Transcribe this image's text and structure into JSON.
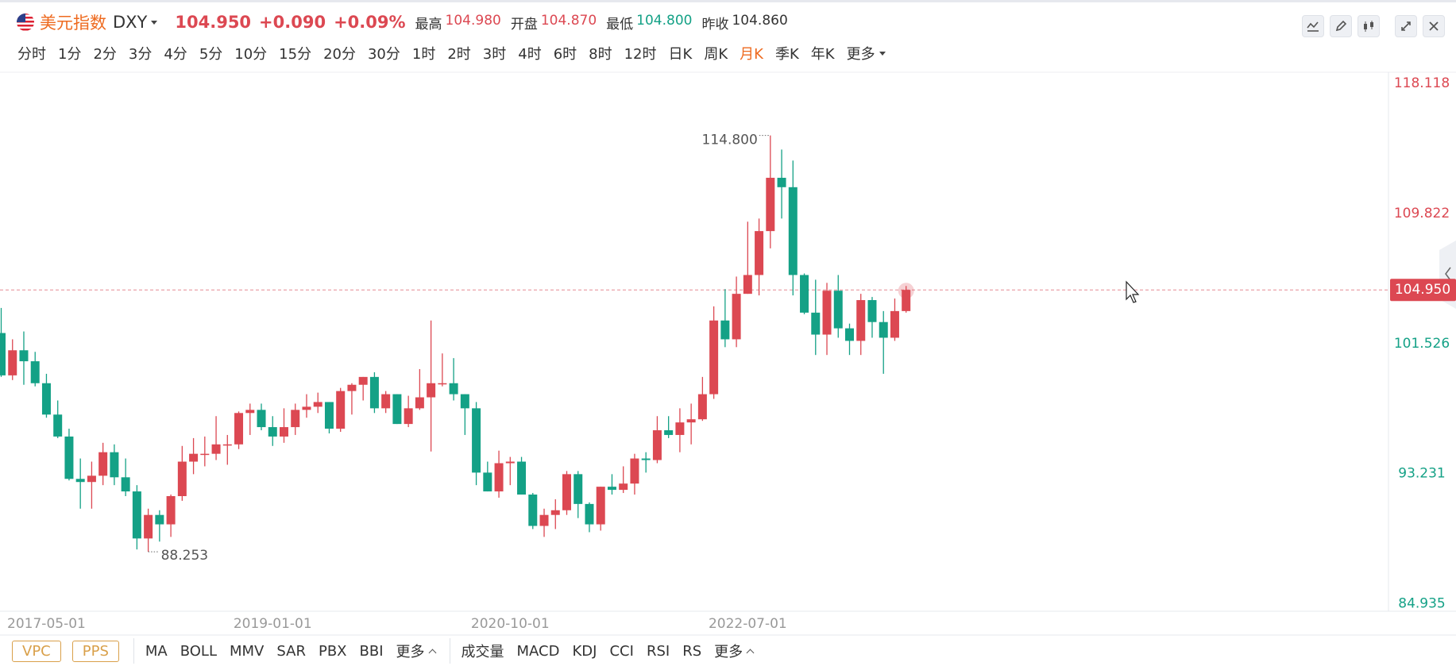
{
  "header": {
    "name": "美元指数",
    "symbol": "DXY",
    "price": "104.950",
    "change": "+0.090",
    "change_pct": "+0.09%",
    "stats": [
      {
        "label": "最高",
        "value": "104.980",
        "tone": "up"
      },
      {
        "label": "开盘",
        "value": "104.870",
        "tone": "up"
      },
      {
        "label": "最低",
        "value": "104.800",
        "tone": "down"
      },
      {
        "label": "昨收",
        "value": "104.860",
        "tone": "flat"
      }
    ]
  },
  "periods": [
    {
      "label": "分时",
      "active": false
    },
    {
      "label": "1分",
      "active": false
    },
    {
      "label": "2分",
      "active": false
    },
    {
      "label": "3分",
      "active": false
    },
    {
      "label": "4分",
      "active": false
    },
    {
      "label": "5分",
      "active": false
    },
    {
      "label": "10分",
      "active": false
    },
    {
      "label": "15分",
      "active": false
    },
    {
      "label": "20分",
      "active": false
    },
    {
      "label": "30分",
      "active": false
    },
    {
      "label": "1时",
      "active": false
    },
    {
      "label": "2时",
      "active": false
    },
    {
      "label": "3时",
      "active": false
    },
    {
      "label": "4时",
      "active": false
    },
    {
      "label": "6时",
      "active": false
    },
    {
      "label": "8时",
      "active": false
    },
    {
      "label": "12时",
      "active": false
    },
    {
      "label": "日K",
      "active": false
    },
    {
      "label": "周K",
      "active": false
    },
    {
      "label": "月K",
      "active": true
    },
    {
      "label": "季K",
      "active": false
    },
    {
      "label": "年K",
      "active": false
    }
  ],
  "periods_more": "更多",
  "indicators": {
    "boxed": [
      "VPC",
      "PPS"
    ],
    "main": [
      "MA",
      "BOLL",
      "MMV",
      "SAR",
      "PBX",
      "BBI"
    ],
    "main_more": "更多",
    "sub": [
      "成交量",
      "MACD",
      "KDJ",
      "CCI",
      "RSI",
      "RS"
    ],
    "sub_more": "更多"
  },
  "chart_data": {
    "type": "candlestick",
    "categories": [
      null,
      null,
      null,
      null,
      "2017-05-01",
      null,
      null,
      null,
      null,
      null,
      null,
      null,
      null,
      null,
      null,
      null,
      null,
      null,
      null,
      null,
      null,
      null,
      null,
      null,
      "2019-01-01",
      null,
      null,
      null,
      null,
      null,
      null,
      null,
      null,
      null,
      null,
      null,
      null,
      null,
      null,
      null,
      null,
      null,
      null,
      null,
      null,
      "2020-10-01",
      null,
      null,
      null,
      null,
      null,
      null,
      null,
      null,
      null,
      null,
      null,
      null,
      null,
      null,
      null,
      null,
      null,
      null,
      null,
      null,
      "2022-07-01",
      null,
      null,
      null,
      null,
      null,
      null,
      null,
      null,
      null,
      null,
      null,
      null,
      null,
      null
    ],
    "open": [
      102.2,
      99.5,
      101.1,
      100.4,
      99.0,
      97.0,
      95.6,
      92.9,
      92.7,
      93.1,
      94.6,
      93.0,
      92.1,
      89.1,
      90.6,
      90.0,
      91.8,
      94.0,
      94.5,
      94.5,
      95.1,
      95.1,
      97.1,
      97.3,
      96.2,
      95.6,
      96.2,
      97.3,
      97.5,
      97.8,
      96.1,
      98.5,
      98.9,
      99.4,
      97.4,
      98.3,
      96.4,
      97.4,
      98.1,
      99.0,
      99.0,
      98.3,
      97.4,
      93.3,
      92.1,
      93.9,
      94.0,
      91.9,
      89.9,
      90.6,
      90.9,
      93.2,
      91.3,
      90.0,
      92.4,
      92.2,
      92.6,
      94.2,
      94.1,
      96.0,
      95.7,
      96.5,
      96.7,
      98.3,
      103.0,
      101.8,
      104.7,
      105.9,
      108.7,
      112.1,
      111.5,
      105.9,
      103.5,
      102.1,
      104.9,
      102.5,
      101.7,
      104.3,
      102.9,
      101.9,
      103.6
    ],
    "high": [
      103.8,
      101.8,
      102.3,
      101.0,
      99.6,
      97.9,
      96.1,
      94.2,
      94.0,
      95.2,
      95.1,
      94.2,
      92.5,
      91.0,
      90.9,
      91.9,
      95.0,
      95.5,
      95.6,
      96.9,
      95.7,
      97.2,
      97.7,
      97.7,
      96.9,
      97.4,
      97.7,
      98.3,
      98.4,
      97.8,
      98.7,
      99.0,
      99.4,
      99.7,
      98.5,
      98.3,
      98.2,
      99.9,
      103.0,
      100.9,
      100.6,
      98.3,
      97.8,
      94.0,
      94.7,
      94.3,
      94.3,
      92.0,
      91.0,
      91.6,
      93.4,
      93.4,
      91.4,
      92.4,
      93.2,
      93.7,
      94.5,
      94.6,
      96.9,
      96.9,
      97.4,
      97.7,
      99.4,
      103.9,
      105.0,
      105.8,
      109.3,
      109.5,
      114.8,
      113.9,
      113.2,
      106.0,
      105.6,
      105.4,
      105.9,
      102.8,
      104.7,
      104.5,
      103.6,
      104.4,
      105.2
    ],
    "low": [
      99.4,
      99.2,
      98.9,
      98.8,
      96.8,
      95.5,
      92.8,
      91.0,
      91.0,
      92.5,
      92.5,
      91.8,
      88.4,
      88.253,
      88.9,
      89.2,
      91.5,
      93.2,
      93.7,
      94.1,
      93.8,
      94.8,
      95.7,
      96.0,
      95.0,
      95.2,
      95.7,
      96.8,
      97.1,
      95.8,
      95.9,
      97.0,
      97.9,
      97.1,
      97.1,
      96.4,
      96.2,
      97.3,
      94.65,
      98.8,
      97.9,
      95.7,
      92.5,
      92.1,
      91.7,
      92.5,
      91.9,
      89.7,
      89.2,
      89.7,
      90.6,
      90.4,
      89.5,
      89.6,
      91.9,
      92.0,
      91.9,
      93.3,
      93.9,
      95.5,
      94.6,
      95.1,
      96.6,
      98.0,
      101.3,
      101.3,
      104.7,
      104.6,
      107.6,
      109.5,
      104.6,
      103.4,
      100.8,
      100.8,
      101.9,
      100.8,
      100.8,
      101.9,
      99.6,
      101.7,
      103.5
    ],
    "close": [
      99.5,
      101.1,
      100.4,
      99.0,
      97.0,
      95.6,
      92.9,
      92.7,
      93.1,
      94.6,
      93.0,
      92.1,
      89.1,
      90.6,
      90.0,
      91.8,
      94.0,
      94.5,
      94.5,
      95.1,
      95.1,
      97.1,
      97.3,
      96.2,
      95.6,
      96.2,
      97.3,
      97.5,
      97.8,
      96.1,
      98.5,
      98.9,
      99.4,
      97.4,
      98.3,
      96.4,
      97.4,
      98.1,
      99.0,
      99.0,
      98.3,
      97.4,
      93.3,
      92.1,
      93.9,
      94.0,
      91.9,
      89.9,
      90.6,
      90.9,
      93.2,
      91.3,
      90.0,
      92.4,
      92.2,
      92.6,
      94.2,
      94.1,
      96.0,
      95.7,
      96.5,
      96.7,
      98.3,
      103.0,
      101.8,
      104.7,
      105.9,
      108.7,
      112.1,
      111.5,
      105.9,
      103.5,
      102.1,
      104.9,
      102.5,
      101.7,
      104.3,
      102.9,
      101.9,
      103.6,
      104.95
    ],
    "up_color": "#dc4852",
    "down_color": "#14a186",
    "ylim": [
      84.46,
      118.83
    ],
    "yticks": [
      118.118,
      109.822,
      101.526,
      93.231,
      84.935
    ],
    "last_price": {
      "value": 104.95,
      "label": "104.950"
    },
    "max_label": {
      "value": 114.8,
      "label": "114.800"
    },
    "min_label": {
      "value": 88.253,
      "label": "88.253"
    }
  }
}
